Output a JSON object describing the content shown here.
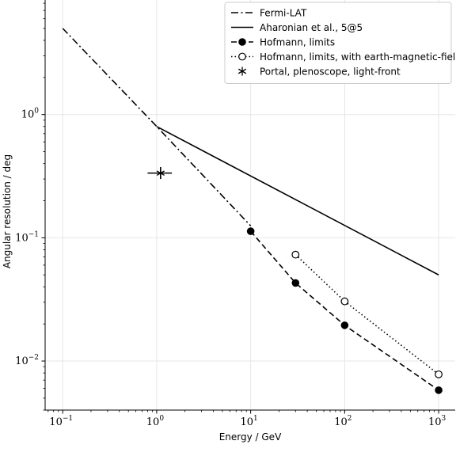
{
  "chart_data": {
    "type": "line",
    "title": "",
    "xlabel": "Energy / GeV",
    "ylabel": "Angular resolution / deg",
    "xscale": "log",
    "yscale": "log",
    "xlim": [
      0.065,
      1500
    ],
    "ylim": [
      0.004,
      8.5
    ],
    "grid": true,
    "legend_position": "top-right",
    "xticks": [
      {
        "value": 0.1,
        "base": "10",
        "exp": "−1"
      },
      {
        "value": 1,
        "base": "10",
        "exp": "0"
      },
      {
        "value": 10,
        "base": "10",
        "exp": "1"
      },
      {
        "value": 100,
        "base": "10",
        "exp": "2"
      },
      {
        "value": 1000,
        "base": "10",
        "exp": "3"
      }
    ],
    "yticks": [
      {
        "value": 0.01,
        "base": "10",
        "exp": "−2"
      },
      {
        "value": 0.1,
        "base": "10",
        "exp": "−1"
      },
      {
        "value": 1,
        "base": "10",
        "exp": "0"
      }
    ],
    "series": [
      {
        "name": "Fermi-LAT",
        "style": "dashdot",
        "marker": "none",
        "color": "#000000",
        "x": [
          0.1,
          1,
          10
        ],
        "y": [
          5.0,
          0.8,
          0.125
        ]
      },
      {
        "name": "Aharonian et al., 5@5",
        "style": "solid",
        "marker": "none",
        "color": "#000000",
        "x": [
          1,
          1000
        ],
        "y": [
          0.8,
          0.05
        ]
      },
      {
        "name": "Hofmann, limits",
        "style": "dashed",
        "marker": "filled-circle",
        "color": "#000000",
        "x": [
          10,
          30,
          100,
          1000
        ],
        "y": [
          0.113,
          0.043,
          0.0195,
          0.0058
        ]
      },
      {
        "name": "Hofmann, limits, with earth-magnetic-field",
        "style": "dotted",
        "marker": "open-circle",
        "color": "#000000",
        "x": [
          30,
          100,
          1000
        ],
        "y": [
          0.073,
          0.0305,
          0.0078
        ]
      },
      {
        "name": "Portal, plenoscope, light-front",
        "style": "none",
        "marker": "star-errorbar",
        "color": "#000000",
        "x": [
          1.1
        ],
        "y": [
          0.335
        ],
        "x_err": [
          0.8,
          1.45
        ],
        "y_err": [
          0.3,
          0.375
        ]
      }
    ]
  }
}
